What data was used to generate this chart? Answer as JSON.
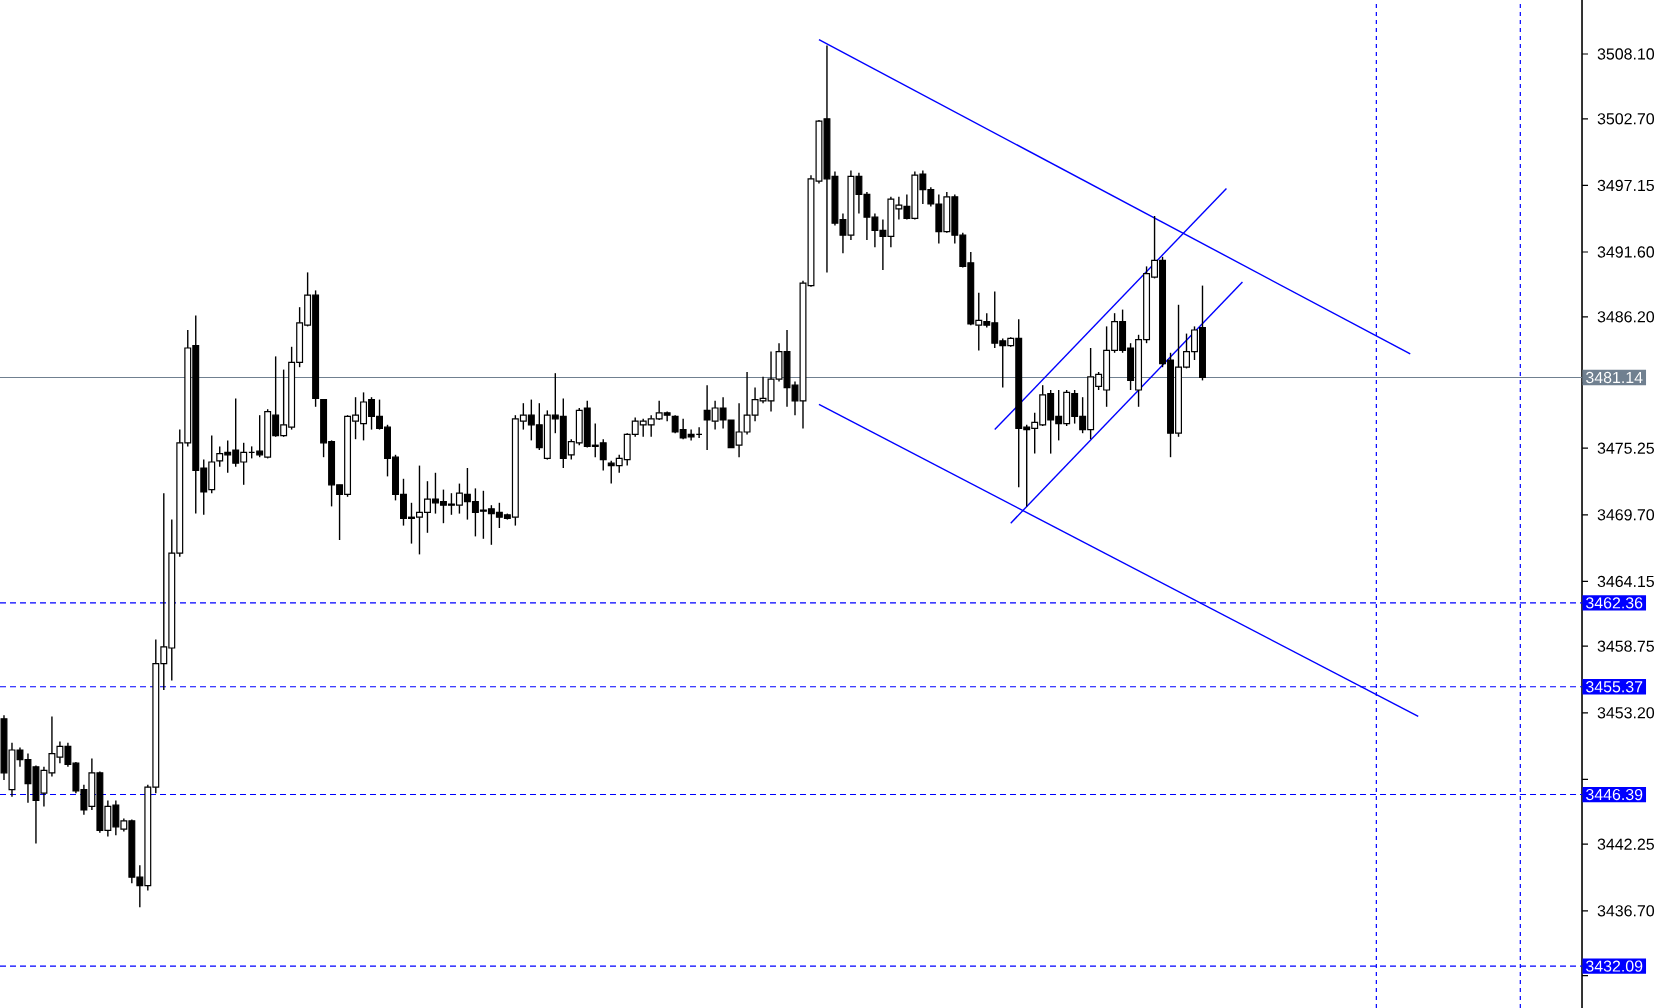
{
  "chart_data": {
    "type": "candlestick",
    "categories": [
      null,
      null,
      null,
      null,
      null,
      null,
      null,
      null,
      null,
      null,
      null,
      null,
      null,
      null,
      null,
      null,
      null,
      null,
      null,
      null,
      null,
      null,
      null,
      null,
      null,
      null,
      null,
      null,
      null,
      null,
      null,
      null,
      null,
      null,
      null,
      null,
      null,
      null,
      null,
      null,
      null,
      null,
      null,
      null,
      null,
      null,
      null,
      null,
      null,
      null,
      null,
      null,
      null,
      null,
      null,
      null,
      null,
      null,
      null,
      null,
      null,
      null,
      null,
      null,
      null,
      null,
      null,
      null,
      null,
      null,
      null,
      null,
      null,
      null,
      null,
      null,
      null,
      null,
      null,
      null,
      null,
      null,
      null,
      null,
      null,
      null,
      null,
      null,
      null,
      null,
      null,
      null,
      null,
      null,
      null,
      null,
      null,
      null,
      null,
      null,
      null,
      null,
      null,
      null,
      null,
      null,
      null,
      null,
      null,
      null,
      null,
      null,
      null,
      null,
      null,
      null,
      null,
      null,
      null,
      null,
      null,
      null,
      null,
      null,
      null,
      null,
      null,
      null,
      null,
      null,
      null,
      null,
      null,
      null,
      null,
      null,
      null,
      null,
      null,
      null,
      null,
      null,
      null,
      null,
      null,
      null,
      null,
      null,
      null,
      null,
      null,
      null,
      null,
      null,
      null,
      null,
      null,
      null,
      null,
      null,
      null,
      null,
      null,
      null,
      null,
      null,
      null,
      null,
      null,
      null,
      null,
      null,
      null,
      null,
      null,
      null,
      null,
      null,
      null,
      null,
      null,
      null,
      null,
      null,
      null,
      null,
      null,
      null,
      null,
      null,
      null,
      null,
      null,
      null,
      null,
      null,
      null,
      null
    ],
    "ohlc": [
      [
        3452.7,
        3453.0,
        3447.6,
        3448.2
      ],
      [
        3446.8,
        3450.7,
        3446.2,
        3450.1
      ],
      [
        3450.1,
        3450.3,
        3448.7,
        3449.3
      ],
      [
        3449.3,
        3449.8,
        3445.7,
        3447.3
      ],
      [
        3448.7,
        3448.8,
        3442.3,
        3445.9
      ],
      [
        3446.5,
        3448.7,
        3445.4,
        3448.4
      ],
      [
        3448.2,
        3452.9,
        3447.9,
        3449.8
      ],
      [
        3449.5,
        3450.8,
        3449.0,
        3450.4
      ],
      [
        3450.4,
        3450.7,
        3448.7,
        3448.9
      ],
      [
        3449.0,
        3449.1,
        3446.5,
        3446.7
      ],
      [
        3446.8,
        3447.2,
        3444.7,
        3445.1
      ],
      [
        3445.4,
        3449.4,
        3445.1,
        3448.2
      ],
      [
        3448.2,
        3448.3,
        3443.2,
        3443.4
      ],
      [
        3443.4,
        3445.9,
        3442.9,
        3445.4
      ],
      [
        3445.5,
        3445.9,
        3443.0,
        3443.7
      ],
      [
        3443.5,
        3444.4,
        3443.3,
        3444.2
      ],
      [
        3444.2,
        3444.3,
        3439.0,
        3439.5
      ],
      [
        3439.5,
        3440.5,
        3437.0,
        3438.8
      ],
      [
        3438.8,
        3447.2,
        3438.4,
        3447.0
      ],
      [
        3447.0,
        3459.3,
        3446.5,
        3457.3
      ],
      [
        3457.3,
        3471.5,
        3455.1,
        3458.7
      ],
      [
        3458.6,
        3469.3,
        3455.9,
        3466.5
      ],
      [
        3466.5,
        3476.8,
        3466.2,
        3475.7
      ],
      [
        3475.7,
        3485.1,
        3475.4,
        3483.6
      ],
      [
        3483.8,
        3486.3,
        3469.8,
        3473.4
      ],
      [
        3473.6,
        3474.3,
        3469.7,
        3471.6
      ],
      [
        3471.8,
        3476.3,
        3471.5,
        3474.1
      ],
      [
        3474.2,
        3475.4,
        3473.7,
        3474.8
      ],
      [
        3474.9,
        3475.9,
        3473.2,
        3474.7
      ],
      [
        3475.1,
        3479.4,
        3473.7,
        3474.0
      ],
      [
        3474.1,
        3475.7,
        3472.2,
        3474.9
      ],
      [
        3474.9,
        3475.4,
        3474.4,
        3474.9
      ],
      [
        3475.0,
        3478.0,
        3474.5,
        3474.7
      ],
      [
        3474.5,
        3478.5,
        3474.4,
        3478.3
      ],
      [
        3478.0,
        3482.9,
        3476.2,
        3476.3
      ],
      [
        3476.3,
        3481.8,
        3476.2,
        3477.2
      ],
      [
        3477.0,
        3483.7,
        3476.8,
        3482.4
      ],
      [
        3482.4,
        3487.0,
        3482.0,
        3485.7
      ],
      [
        3485.5,
        3489.9,
        3485.4,
        3488.0
      ],
      [
        3488.0,
        3488.4,
        3478.7,
        3479.4
      ],
      [
        3479.3,
        3479.3,
        3474.5,
        3475.7
      ],
      [
        3475.8,
        3475.9,
        3470.4,
        3472.2
      ],
      [
        3472.2,
        3472.2,
        3467.6,
        3471.4
      ],
      [
        3471.4,
        3478.0,
        3471.2,
        3477.9
      ],
      [
        3477.5,
        3479.5,
        3476.0,
        3478.0
      ],
      [
        3477.3,
        3479.9,
        3475.9,
        3479.1
      ],
      [
        3479.3,
        3479.5,
        3476.8,
        3477.9
      ],
      [
        3477.9,
        3479.3,
        3476.8,
        3476.9
      ],
      [
        3477.0,
        3477.2,
        3472.9,
        3474.4
      ],
      [
        3474.5,
        3474.7,
        3470.9,
        3471.4
      ],
      [
        3471.4,
        3472.7,
        3468.8,
        3469.4
      ],
      [
        3469.5,
        3470.7,
        3467.3,
        3469.4
      ],
      [
        3469.5,
        3473.8,
        3466.4,
        3469.9
      ],
      [
        3469.9,
        3472.5,
        3468.2,
        3471.0
      ],
      [
        3471.0,
        3473.2,
        3469.8,
        3470.7
      ],
      [
        3470.8,
        3471.8,
        3469.0,
        3470.5
      ],
      [
        3470.6,
        3471.5,
        3469.7,
        3470.5
      ],
      [
        3470.5,
        3472.3,
        3469.8,
        3471.5
      ],
      [
        3471.4,
        3473.6,
        3469.3,
        3470.8
      ],
      [
        3470.8,
        3471.9,
        3467.9,
        3469.9
      ],
      [
        3470.1,
        3471.7,
        3467.7,
        3470.0
      ],
      [
        3470.2,
        3470.5,
        3467.2,
        3469.8
      ],
      [
        3469.9,
        3470.7,
        3468.6,
        3469.5
      ],
      [
        3469.7,
        3469.8,
        3469.3,
        3469.4
      ],
      [
        3469.5,
        3478.0,
        3468.8,
        3477.7
      ],
      [
        3477.5,
        3479.0,
        3476.8,
        3478.0
      ],
      [
        3478.0,
        3479.3,
        3475.9,
        3477.2
      ],
      [
        3477.2,
        3479.0,
        3475.1,
        3475.3
      ],
      [
        3474.4,
        3478.4,
        3474.3,
        3478.0
      ],
      [
        3478.0,
        3481.5,
        3476.5,
        3477.7
      ],
      [
        3477.9,
        3479.4,
        3473.6,
        3474.4
      ],
      [
        3474.7,
        3476.0,
        3474.3,
        3475.8
      ],
      [
        3475.7,
        3478.6,
        3475.5,
        3478.4
      ],
      [
        3478.6,
        3479.2,
        3475.3,
        3475.4
      ],
      [
        3475.5,
        3477.3,
        3474.5,
        3475.4
      ],
      [
        3475.7,
        3476.0,
        3473.4,
        3474.3
      ],
      [
        3474.0,
        3474.2,
        3472.3,
        3473.8
      ],
      [
        3473.8,
        3474.7,
        3473.2,
        3474.4
      ],
      [
        3474.3,
        3476.5,
        3473.8,
        3476.4
      ],
      [
        3476.4,
        3477.8,
        3476.2,
        3477.5
      ],
      [
        3477.2,
        3477.7,
        3476.2,
        3477.5
      ],
      [
        3477.2,
        3478.0,
        3476.2,
        3477.7
      ],
      [
        3477.7,
        3479.2,
        3477.6,
        3478.2
      ],
      [
        3478.2,
        3478.3,
        3477.5,
        3478.0
      ],
      [
        3477.9,
        3478.0,
        3476.5,
        3476.6
      ],
      [
        3476.8,
        3477.7,
        3476.0,
        3476.1
      ],
      [
        3476.4,
        3476.8,
        3475.9,
        3476.2
      ],
      [
        3476.4,
        3477.0,
        3476.1,
        3476.4
      ],
      [
        3478.4,
        3480.5,
        3475.1,
        3477.6
      ],
      [
        3477.5,
        3479.2,
        3476.8,
        3478.6
      ],
      [
        3478.6,
        3479.5,
        3476.9,
        3477.6
      ],
      [
        3477.6,
        3477.6,
        3475.3,
        3475.3
      ],
      [
        3475.5,
        3479.0,
        3474.5,
        3476.6
      ],
      [
        3476.6,
        3481.6,
        3476.4,
        3478.0
      ],
      [
        3478.0,
        3480.3,
        3477.5,
        3479.3
      ],
      [
        3479.2,
        3481.2,
        3479.0,
        3479.4
      ],
      [
        3479.2,
        3483.3,
        3478.3,
        3481.0
      ],
      [
        3481.0,
        3484.0,
        3480.8,
        3483.3
      ],
      [
        3483.3,
        3485.1,
        3478.7,
        3480.3
      ],
      [
        3480.5,
        3480.8,
        3478.0,
        3479.2
      ],
      [
        3479.2,
        3489.2,
        3476.9,
        3489.0
      ],
      [
        3488.8,
        3498.0,
        3488.7,
        3497.7
      ],
      [
        3497.5,
        3502.6,
        3497.3,
        3502.5
      ],
      [
        3502.7,
        3508.8,
        3489.9,
        3497.7
      ],
      [
        3497.9,
        3498.3,
        3493.8,
        3494.0
      ],
      [
        3494.3,
        3494.8,
        3491.5,
        3493.0
      ],
      [
        3493.0,
        3498.4,
        3492.6,
        3497.9
      ],
      [
        3497.9,
        3498.2,
        3494.8,
        3496.4
      ],
      [
        3496.4,
        3496.6,
        3492.6,
        3494.5
      ],
      [
        3494.5,
        3494.8,
        3492.0,
        3493.4
      ],
      [
        3493.4,
        3494.3,
        3490.1,
        3492.9
      ],
      [
        3492.9,
        3496.2,
        3492.0,
        3496.0
      ],
      [
        3495.2,
        3496.2,
        3494.3,
        3495.5
      ],
      [
        3495.4,
        3496.4,
        3494.3,
        3494.4
      ],
      [
        3494.4,
        3498.3,
        3494.3,
        3498.0
      ],
      [
        3498.1,
        3498.4,
        3495.6,
        3496.8
      ],
      [
        3496.8,
        3497.0,
        3495.4,
        3495.6
      ],
      [
        3495.6,
        3496.4,
        3492.3,
        3493.3
      ],
      [
        3493.3,
        3496.6,
        3493.2,
        3496.2
      ],
      [
        3496.2,
        3496.4,
        3492.3,
        3493.0
      ],
      [
        3493.0,
        3493.2,
        3490.3,
        3490.4
      ],
      [
        3490.7,
        3491.6,
        3485.5,
        3485.6
      ],
      [
        3485.5,
        3488.2,
        3483.4,
        3485.9
      ],
      [
        3485.8,
        3486.5,
        3485.3,
        3485.5
      ],
      [
        3485.7,
        3488.3,
        3483.6,
        3484.0
      ],
      [
        3484.2,
        3484.4,
        3480.3,
        3483.8
      ],
      [
        3483.8,
        3484.5,
        3483.7,
        3484.4
      ],
      [
        3484.4,
        3486.0,
        3472.0,
        3476.9
      ],
      [
        3477.0,
        3477.2,
        3470.4,
        3476.8
      ],
      [
        3476.9,
        3478.2,
        3474.8,
        3477.4
      ],
      [
        3477.2,
        3480.5,
        3477.1,
        3479.7
      ],
      [
        3479.8,
        3480.1,
        3474.8,
        3477.6
      ],
      [
        3477.9,
        3480.1,
        3475.9,
        3477.3
      ],
      [
        3477.3,
        3480.1,
        3477.1,
        3479.9
      ],
      [
        3479.8,
        3480.1,
        3477.3,
        3477.9
      ],
      [
        3477.9,
        3479.5,
        3476.5,
        3476.8
      ],
      [
        3476.8,
        3483.6,
        3476.0,
        3481.2
      ],
      [
        3480.4,
        3481.6,
        3480.1,
        3481.4
      ],
      [
        3480.1,
        3485.4,
        3478.7,
        3483.4
      ],
      [
        3483.4,
        3486.5,
        3483.2,
        3485.8
      ],
      [
        3485.8,
        3486.8,
        3483.2,
        3483.4
      ],
      [
        3483.6,
        3484.0,
        3480.1,
        3480.9
      ],
      [
        3480.1,
        3484.7,
        3478.7,
        3484.3
      ],
      [
        3484.3,
        3490.4,
        3484.0,
        3489.8
      ],
      [
        3489.5,
        3494.6,
        3489.4,
        3490.9
      ],
      [
        3490.9,
        3491.2,
        3482.0,
        3482.3
      ],
      [
        3482.6,
        3483.2,
        3474.5,
        3476.5
      ],
      [
        3476.5,
        3487.2,
        3476.2,
        3482.0
      ],
      [
        3482.0,
        3484.8,
        3481.9,
        3483.3
      ],
      [
        3483.3,
        3485.4,
        3482.6,
        3485.1
      ],
      [
        3485.3,
        3488.8,
        3480.9,
        3481.14
      ],
      null,
      null,
      null,
      null,
      null,
      null,
      null,
      null,
      null,
      null,
      null,
      null,
      null,
      null,
      null,
      null,
      null,
      null,
      null,
      null,
      null,
      null,
      null,
      null,
      null,
      null,
      null,
      null,
      null,
      null,
      null,
      null,
      null,
      null,
      null,
      null,
      null,
      null,
      null,
      null,
      null,
      null,
      null,
      null,
      null,
      null,
      null
    ],
    "series": [
      {
        "type": "line",
        "color": "#0000ff",
        "values": [
          null,
          null,
          null,
          null,
          null,
          null,
          null,
          null,
          null,
          null,
          null,
          null,
          null,
          null,
          null,
          null,
          null,
          null,
          null,
          null,
          null,
          null,
          null,
          null,
          null,
          null,
          null,
          null,
          null,
          null,
          null,
          null,
          null,
          null,
          null,
          null,
          null,
          null,
          null,
          null,
          null,
          null,
          null,
          null,
          null,
          null,
          null,
          null,
          null,
          null,
          null,
          null,
          null,
          null,
          null,
          null,
          null,
          null,
          null,
          null,
          null,
          null,
          null,
          null,
          null,
          null,
          null,
          null,
          null,
          null,
          null,
          null,
          null,
          null,
          null,
          null,
          null,
          null,
          null,
          null,
          null,
          null,
          null,
          null,
          null,
          null,
          null,
          null,
          null,
          null,
          null,
          null,
          null,
          null,
          null,
          null,
          null,
          null,
          null,
          null,
          null,
          null,
          3509.3,
          null,
          null,
          null,
          null,
          null,
          null,
          null,
          null,
          null,
          null,
          null,
          null,
          null,
          null,
          null,
          null,
          null,
          null,
          null,
          null,
          null,
          null,
          null,
          null,
          null,
          null,
          null,
          null,
          null,
          null,
          null,
          null,
          null,
          null,
          null,
          null,
          null,
          null,
          null,
          null,
          null,
          null,
          null,
          null,
          null,
          null,
          null,
          null,
          null,
          null,
          null,
          null,
          null,
          null,
          null,
          null,
          null,
          null,
          null,
          null,
          null,
          null,
          null,
          null,
          null,
          null,
          null,
          null,
          null,
          null,
          null,
          null,
          null,
          3483.1,
          null,
          null,
          null,
          null,
          null,
          null,
          null,
          null,
          null,
          null,
          null,
          null,
          null,
          null,
          null,
          null,
          null,
          null,
          null,
          null,
          null
        ]
      },
      {
        "type": "line",
        "color": "#0000ff",
        "values": [
          null,
          null,
          null,
          null,
          null,
          null,
          null,
          null,
          null,
          null,
          null,
          null,
          null,
          null,
          null,
          null,
          null,
          null,
          null,
          null,
          null,
          null,
          null,
          null,
          null,
          null,
          null,
          null,
          null,
          null,
          null,
          null,
          null,
          null,
          null,
          null,
          null,
          null,
          null,
          null,
          null,
          null,
          null,
          null,
          null,
          null,
          null,
          null,
          null,
          null,
          null,
          null,
          null,
          null,
          null,
          null,
          null,
          null,
          null,
          null,
          null,
          null,
          null,
          null,
          null,
          null,
          null,
          null,
          null,
          null,
          null,
          null,
          null,
          null,
          null,
          null,
          null,
          null,
          null,
          null,
          null,
          null,
          null,
          null,
          null,
          null,
          null,
          null,
          null,
          null,
          null,
          null,
          null,
          null,
          null,
          null,
          null,
          null,
          null,
          null,
          null,
          null,
          3478.9,
          null,
          null,
          null,
          null,
          null,
          null,
          null,
          null,
          null,
          null,
          null,
          null,
          null,
          null,
          null,
          null,
          null,
          null,
          null,
          null,
          null,
          null,
          null,
          null,
          null,
          null,
          null,
          null,
          null,
          null,
          null,
          null,
          null,
          null,
          null,
          null,
          null,
          null,
          null,
          null,
          null,
          null,
          null,
          null,
          null,
          null,
          null,
          null,
          null,
          null,
          null,
          null,
          null,
          null,
          null,
          null,
          null,
          null,
          null,
          null,
          null,
          null,
          null,
          null,
          null,
          null,
          null,
          null,
          null,
          null,
          null,
          null,
          null,
          null,
          3452.9,
          null,
          null,
          null,
          null,
          null,
          null,
          null,
          null,
          null,
          null,
          null,
          null,
          null,
          null,
          null,
          null,
          null,
          null,
          null,
          null
        ]
      },
      {
        "type": "line",
        "color": "#0000ff",
        "values": [
          null,
          null,
          null,
          null,
          null,
          null,
          null,
          null,
          null,
          null,
          null,
          null,
          null,
          null,
          null,
          null,
          null,
          null,
          null,
          null,
          null,
          null,
          null,
          null,
          null,
          null,
          null,
          null,
          null,
          null,
          null,
          null,
          null,
          null,
          null,
          null,
          null,
          null,
          null,
          null,
          null,
          null,
          null,
          null,
          null,
          null,
          null,
          null,
          null,
          null,
          null,
          null,
          null,
          null,
          null,
          null,
          null,
          null,
          null,
          null,
          null,
          null,
          null,
          null,
          null,
          null,
          null,
          null,
          null,
          null,
          null,
          null,
          null,
          null,
          null,
          null,
          null,
          null,
          null,
          null,
          null,
          null,
          null,
          null,
          null,
          null,
          null,
          null,
          null,
          null,
          null,
          null,
          null,
          null,
          null,
          null,
          null,
          null,
          null,
          null,
          null,
          null,
          null,
          null,
          null,
          null,
          null,
          null,
          null,
          null,
          null,
          null,
          null,
          null,
          null,
          null,
          null,
          null,
          null,
          null,
          null,
          null,
          null,
          null,
          3476.8,
          null,
          null,
          null,
          null,
          null,
          null,
          null,
          null,
          null,
          null,
          null,
          null,
          null,
          null,
          null,
          null,
          null,
          null,
          null,
          null,
          null,
          null,
          null,
          null,
          null,
          null,
          null,
          null,
          3496.9,
          null,
          null,
          null,
          null,
          null,
          null,
          null,
          null,
          null,
          null,
          null,
          null,
          null,
          null,
          null,
          null,
          null,
          null,
          null,
          null,
          null,
          null,
          null,
          null,
          null,
          null,
          null,
          null,
          null,
          null,
          null,
          null,
          null,
          null,
          null,
          null,
          null,
          null,
          null,
          null,
          null,
          null,
          null,
          null
        ]
      },
      {
        "type": "line",
        "color": "#0000ff",
        "values": [
          null,
          null,
          null,
          null,
          null,
          null,
          null,
          null,
          null,
          null,
          null,
          null,
          null,
          null,
          null,
          null,
          null,
          null,
          null,
          null,
          null,
          null,
          null,
          null,
          null,
          null,
          null,
          null,
          null,
          null,
          null,
          null,
          null,
          null,
          null,
          null,
          null,
          null,
          null,
          null,
          null,
          null,
          null,
          null,
          null,
          null,
          null,
          null,
          null,
          null,
          null,
          null,
          null,
          null,
          null,
          null,
          null,
          null,
          null,
          null,
          null,
          null,
          null,
          null,
          null,
          null,
          null,
          null,
          null,
          null,
          null,
          null,
          null,
          null,
          null,
          null,
          null,
          null,
          null,
          null,
          null,
          null,
          null,
          null,
          null,
          null,
          null,
          null,
          null,
          null,
          null,
          null,
          null,
          null,
          null,
          null,
          null,
          null,
          null,
          null,
          null,
          null,
          null,
          null,
          null,
          null,
          null,
          null,
          null,
          null,
          null,
          null,
          null,
          null,
          null,
          null,
          null,
          null,
          null,
          null,
          null,
          null,
          null,
          null,
          null,
          null,
          3469.0,
          null,
          null,
          null,
          null,
          null,
          null,
          null,
          null,
          null,
          null,
          null,
          null,
          null,
          null,
          null,
          null,
          null,
          null,
          null,
          null,
          null,
          null,
          null,
          null,
          null,
          null,
          null,
          null,
          3489.1,
          null,
          null,
          null,
          null,
          null,
          null,
          null,
          null,
          null,
          null,
          null,
          null,
          null,
          null,
          null,
          null,
          null,
          null,
          null,
          null,
          null,
          null,
          null,
          null,
          null,
          null,
          null,
          null,
          null,
          null,
          null,
          null,
          null,
          null,
          null,
          null,
          null,
          null,
          null,
          null,
          null,
          null
        ]
      }
    ],
    "ylim": [
      3428.6,
      3512.6
    ],
    "yticks": [
      {
        "value": 3508.1,
        "label": "3508.10"
      },
      {
        "value": 3502.7,
        "label": "3502.70"
      },
      {
        "value": 3497.15,
        "label": "3497.15"
      },
      {
        "value": 3491.6,
        "label": "3491.60"
      },
      {
        "value": 3486.2,
        "label": "3486.20"
      },
      {
        "value": 3480.7,
        "label": null
      },
      {
        "value": 3475.25,
        "label": "3475.25"
      },
      {
        "value": 3469.7,
        "label": "3469.70"
      },
      {
        "value": 3464.15,
        "label": "3464.15"
      },
      {
        "value": 3458.75,
        "label": "3458.75"
      },
      {
        "value": 3453.2,
        "label": "3453.20"
      },
      {
        "value": 3447.65,
        "label": null
      },
      {
        "value": 3442.25,
        "label": "3442.25"
      },
      {
        "value": 3436.7,
        "label": "3436.70"
      },
      {
        "value": 3431.3,
        "label": null
      }
    ],
    "tick_labels": "y",
    "ref_lines": [
      {
        "axis": "y",
        "value": 3481.14,
        "label": "3481.14",
        "color": "#708090",
        "line_style": "solid"
      },
      {
        "axis": "y",
        "value": 3462.36,
        "label": "3462.36",
        "color": "#0000ff",
        "line_style": "dashed"
      },
      {
        "axis": "y",
        "value": 3455.37,
        "label": "3455.37",
        "color": "#0000ff",
        "line_style": "dashed"
      },
      {
        "axis": "y",
        "value": 3446.39,
        "label": "3446.39",
        "color": "#0000ff",
        "line_style": "dashed"
      },
      {
        "axis": "y",
        "value": 3432.09,
        "label": "3432.09",
        "color": "#0000ff",
        "line_style": "dashed"
      }
    ]
  }
}
